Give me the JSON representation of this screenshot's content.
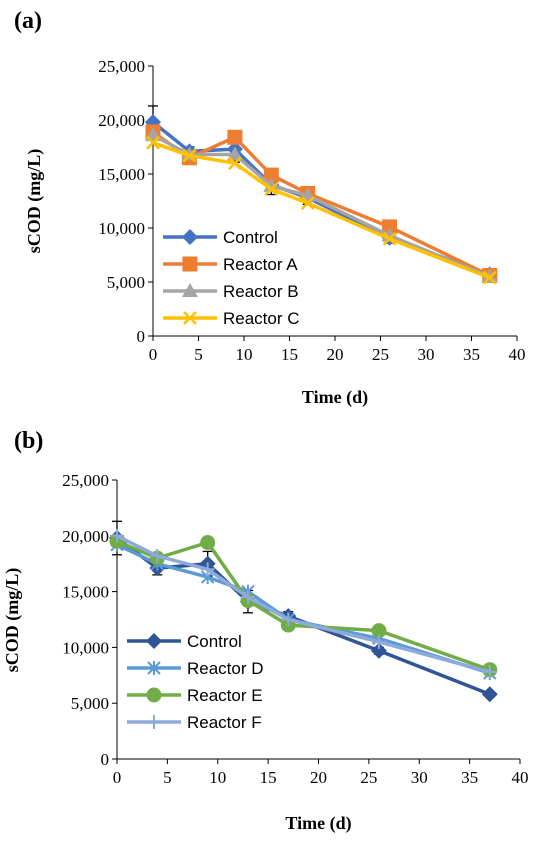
{
  "chart_data": [
    {
      "type": "line",
      "panel_label": "(a)",
      "xlabel": "Time (d)",
      "ylabel": "sCOD (mg/L)",
      "xlim": [
        0,
        40
      ],
      "ylim": [
        0,
        25000
      ],
      "x_ticks": [
        "0",
        "5",
        "10",
        "15",
        "20",
        "25",
        "30",
        "35",
        "40"
      ],
      "y_ticks": [
        "0",
        "5,000",
        "10,000",
        "15,000",
        "20,000",
        "25,000"
      ],
      "legend_position": "bottom-left",
      "grid": false,
      "x": [
        0,
        4,
        9,
        13,
        17,
        26,
        37
      ],
      "series": [
        {
          "name": "Control",
          "color": "#4472C4",
          "marker": "diamond",
          "values": [
            19800,
            17100,
            17300,
            14000,
            12800,
            9100,
            5700
          ],
          "errors": [
            1500,
            400,
            1200,
            900,
            600,
            500,
            300
          ]
        },
        {
          "name": "Reactor A",
          "color": "#ED7D31",
          "marker": "square",
          "values": [
            18900,
            16500,
            18400,
            14900,
            13200,
            10100,
            5600
          ],
          "errors": [
            0,
            0,
            0,
            0,
            0,
            0,
            0
          ]
        },
        {
          "name": "Reactor B",
          "color": "#A5A5A5",
          "marker": "triangle",
          "values": [
            18600,
            16800,
            16800,
            13900,
            13000,
            9300,
            5500
          ],
          "errors": [
            0,
            0,
            0,
            0,
            0,
            0,
            0
          ]
        },
        {
          "name": "Reactor C",
          "color": "#FFC000",
          "marker": "x",
          "values": [
            17900,
            16700,
            16000,
            13600,
            12300,
            9000,
            5400
          ],
          "errors": [
            0,
            0,
            0,
            0,
            0,
            0,
            0
          ]
        }
      ]
    },
    {
      "type": "line",
      "panel_label": "(b)",
      "xlabel": "Time (d)",
      "ylabel": "sCOD (mg/L)",
      "xlim": [
        0,
        40
      ],
      "ylim": [
        0,
        25000
      ],
      "x_ticks": [
        "0",
        "5",
        "10",
        "15",
        "20",
        "25",
        "30",
        "35",
        "40"
      ],
      "y_ticks": [
        "0",
        "5,000",
        "10,000",
        "15,000",
        "20,000",
        "25,000"
      ],
      "legend_position": "bottom-left",
      "grid": false,
      "x": [
        0,
        4,
        9,
        13,
        17,
        26,
        37
      ],
      "series": [
        {
          "name": "Control",
          "color": "#2F5597",
          "marker": "diamond",
          "values": [
            19800,
            17100,
            17500,
            14100,
            12800,
            9700,
            5800
          ],
          "errors": [
            1500,
            600,
            1100,
            1000,
            400,
            300,
            200
          ]
        },
        {
          "name": "Reactor D",
          "color": "#5B9BD5",
          "marker": "asterisk",
          "values": [
            19200,
            17500,
            16300,
            15000,
            12500,
            10800,
            7700
          ],
          "errors": [
            0,
            0,
            0,
            0,
            0,
            0,
            0
          ]
        },
        {
          "name": "Reactor E",
          "color": "#70AD47",
          "marker": "circle",
          "values": [
            19500,
            18000,
            19400,
            14200,
            12000,
            11500,
            8000
          ],
          "errors": [
            0,
            0,
            0,
            0,
            0,
            0,
            0
          ]
        },
        {
          "name": "Reactor F",
          "color": "#8EA9DB",
          "marker": "plus",
          "values": [
            20000,
            18200,
            17000,
            14500,
            12500,
            10500,
            7800
          ],
          "errors": [
            0,
            0,
            0,
            0,
            0,
            0,
            0
          ]
        }
      ]
    }
  ]
}
